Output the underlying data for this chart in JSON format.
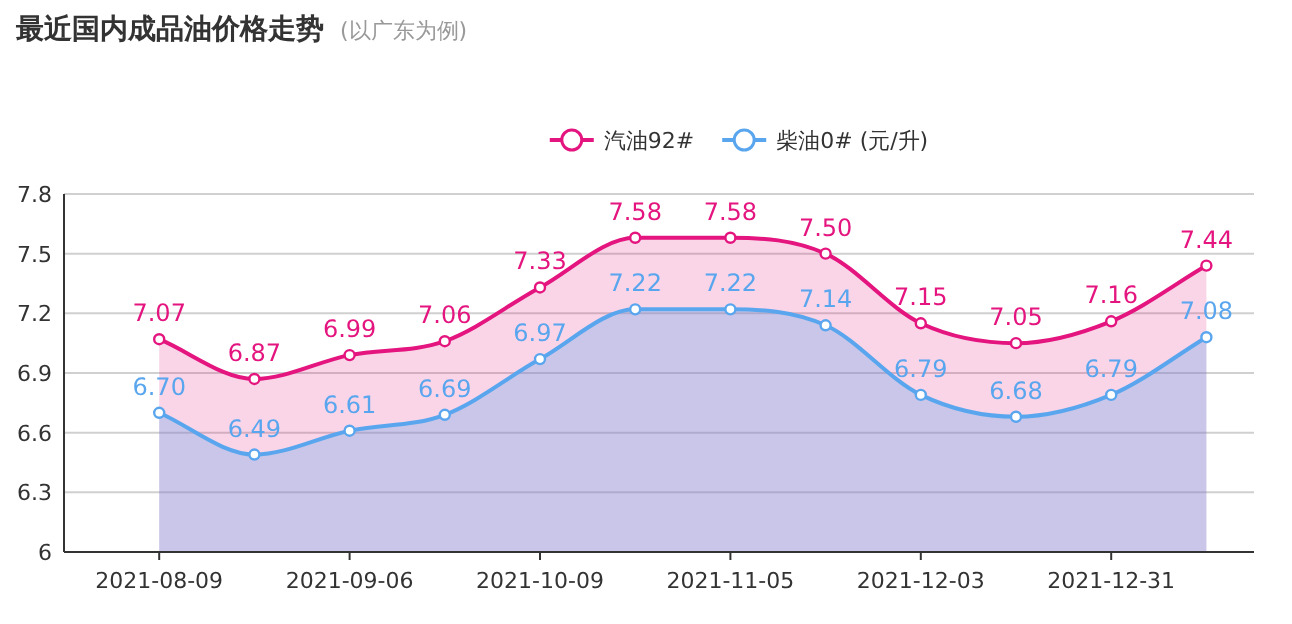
{
  "chart_data": {
    "type": "area",
    "title": "最近国内成品油价格走势",
    "subtitle": "(以广东为例)",
    "categories": [
      "2021-08-09",
      null,
      "2021-09-06",
      null,
      "2021-10-09",
      null,
      "2021-11-05",
      null,
      "2021-12-03",
      null,
      "2021-12-31",
      null
    ],
    "series": [
      {
        "name": "汽油92#",
        "color": "#e4157f",
        "values": [
          7.07,
          6.87,
          6.99,
          7.06,
          7.33,
          7.58,
          7.58,
          7.5,
          7.15,
          7.05,
          7.16,
          7.44
        ],
        "value_labels": [
          "7.07",
          "6.87",
          "6.99",
          "7.06",
          "7.33",
          "7.58",
          "7.58",
          "7.50",
          "7.15",
          "7.05",
          "7.16",
          "7.44"
        ]
      },
      {
        "name": "柴油0# (元/升)",
        "color": "#5aa6ee",
        "values": [
          6.7,
          6.49,
          6.61,
          6.69,
          6.97,
          7.22,
          7.22,
          7.14,
          6.79,
          6.68,
          6.79,
          7.08
        ],
        "value_labels": [
          "6.70",
          "6.49",
          "6.61",
          "6.69",
          "6.97",
          "7.22",
          "7.22",
          "7.14",
          "6.79",
          "6.68",
          "6.79",
          "7.08"
        ]
      }
    ],
    "ylim": [
      6,
      7.8
    ],
    "yticks": [
      6,
      6.3,
      6.6,
      6.9,
      7.2,
      7.5,
      7.8
    ],
    "grid": "y",
    "legend": "top",
    "marker": "circle"
  }
}
